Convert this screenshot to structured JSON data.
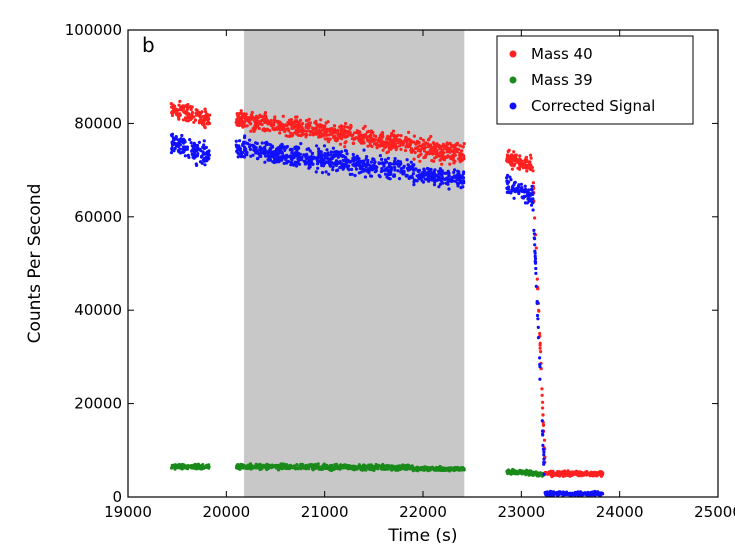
{
  "chart_data": {
    "type": "scatter",
    "panel_label": "b",
    "xlabel": "Time (s)",
    "ylabel": "Counts Per Second",
    "xlim": [
      19000,
      25000
    ],
    "ylim": [
      0,
      100000
    ],
    "xticks": [
      19000,
      20000,
      21000,
      22000,
      23000,
      24000,
      25000
    ],
    "yticks": [
      0,
      20000,
      40000,
      60000,
      80000,
      100000
    ],
    "grid": false,
    "legend_position": "top-right",
    "shaded_region": {
      "x_start": 20180,
      "x_end": 22420,
      "color": "#c8c8c8"
    },
    "series": [
      {
        "name": "Mass 40",
        "color": "#ff2020",
        "segments": [
          {
            "x_start": 19440,
            "x_end": 19830,
            "y_start": 83000,
            "y_end": 81000,
            "spread": 3000
          },
          {
            "x_start": 20100,
            "x_end": 21900,
            "y_start": 81000,
            "y_end": 75500,
            "spread": 3000
          },
          {
            "x_start": 21900,
            "x_end": 22420,
            "y_start": 74500,
            "y_end": 73500,
            "spread": 3500
          },
          {
            "x_start": 22850,
            "x_end": 23120,
            "y_start": 72500,
            "y_end": 71000,
            "spread": 2500
          },
          {
            "x_start": 23120,
            "x_end": 23240,
            "y_start": 68000,
            "y_end": 8000,
            "spread": 2500
          },
          {
            "x_start": 23240,
            "x_end": 23830,
            "y_start": 5000,
            "y_end": 5000,
            "spread": 800
          }
        ]
      },
      {
        "name": "Mass 39",
        "color": "#1a8a1a",
        "segments": [
          {
            "x_start": 19440,
            "x_end": 19830,
            "y_start": 6500,
            "y_end": 6500,
            "spread": 700
          },
          {
            "x_start": 20100,
            "x_end": 21900,
            "y_start": 6500,
            "y_end": 6300,
            "spread": 800
          },
          {
            "x_start": 21900,
            "x_end": 22420,
            "y_start": 6000,
            "y_end": 6000,
            "spread": 600
          },
          {
            "x_start": 22850,
            "x_end": 23240,
            "y_start": 5500,
            "y_end": 4800,
            "spread": 700
          }
        ]
      },
      {
        "name": "Corrected Signal",
        "color": "#1010ff",
        "segments": [
          {
            "x_start": 19440,
            "x_end": 19830,
            "y_start": 76000,
            "y_end": 73000,
            "spread": 3500
          },
          {
            "x_start": 20100,
            "x_end": 21900,
            "y_start": 74500,
            "y_end": 70000,
            "spread": 3500
          },
          {
            "x_start": 21900,
            "x_end": 22420,
            "y_start": 69000,
            "y_end": 68000,
            "spread": 2500
          },
          {
            "x_start": 22850,
            "x_end": 23120,
            "y_start": 67000,
            "y_end": 64000,
            "spread": 3000
          },
          {
            "x_start": 23120,
            "x_end": 23240,
            "y_start": 62000,
            "y_end": 2000,
            "spread": 2500
          },
          {
            "x_start": 23240,
            "x_end": 23830,
            "y_start": 700,
            "y_end": 700,
            "spread": 600
          }
        ]
      }
    ]
  }
}
